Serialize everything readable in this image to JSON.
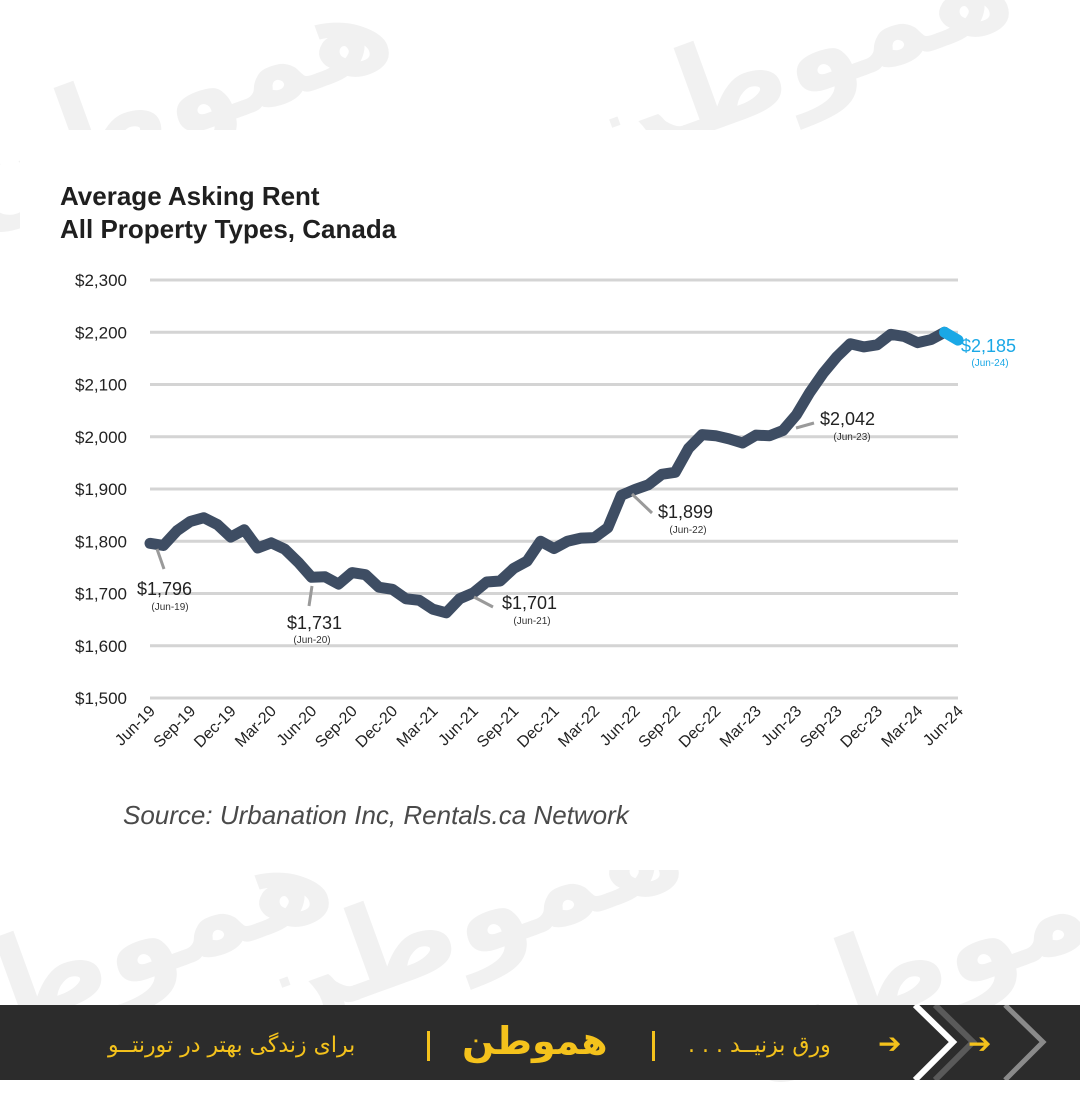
{
  "chart_data": {
    "type": "line",
    "title_lines": [
      "Average Asking Rent",
      "All Property Types, Canada"
    ],
    "source": "Source: Urbanation Inc, Rentals.ca Network",
    "ylim": [
      1500,
      2300
    ],
    "yticks": [
      "$2,300",
      "$2,200",
      "$2,100",
      "$2,000",
      "$1,900",
      "$1,800",
      "$1,700",
      "$1,600",
      "$1,500"
    ],
    "ytick_values": [
      2300,
      2200,
      2100,
      2000,
      1900,
      1800,
      1700,
      1600,
      1500
    ],
    "xtick_labels": [
      "Jun-19",
      "Sep-19",
      "Dec-19",
      "Mar-20",
      "Jun-20",
      "Sep-20",
      "Dec-20",
      "Mar-21",
      "Jun-21",
      "Sep-21",
      "Dec-21",
      "Mar-22",
      "Jun-22",
      "Sep-22",
      "Dec-22",
      "Mar-23",
      "Jun-23",
      "Sep-23",
      "Dec-23",
      "Mar-24",
      "Jun-24"
    ],
    "x": [
      "Jun-19",
      "Jul-19",
      "Aug-19",
      "Sep-19",
      "Oct-19",
      "Nov-19",
      "Dec-19",
      "Jan-20",
      "Feb-20",
      "Mar-20",
      "Apr-20",
      "May-20",
      "Jun-20",
      "Jul-20",
      "Aug-20",
      "Sep-20",
      "Oct-20",
      "Nov-20",
      "Dec-20",
      "Jan-21",
      "Feb-21",
      "Mar-21",
      "Apr-21",
      "May-21",
      "Jun-21",
      "Jul-21",
      "Aug-21",
      "Sep-21",
      "Oct-21",
      "Nov-21",
      "Dec-21",
      "Jan-22",
      "Feb-22",
      "Mar-22",
      "Apr-22",
      "May-22",
      "Jun-22",
      "Jul-22",
      "Aug-22",
      "Sep-22",
      "Oct-22",
      "Nov-22",
      "Dec-22",
      "Jan-23",
      "Feb-23",
      "Mar-23",
      "Apr-23",
      "May-23",
      "Jun-23",
      "Jul-23",
      "Aug-23",
      "Sep-23",
      "Oct-23",
      "Nov-23",
      "Dec-23",
      "Jan-24",
      "Feb-24",
      "Mar-24",
      "Apr-24",
      "May-24",
      "Jun-24"
    ],
    "values": [
      1796,
      1792,
      1820,
      1838,
      1845,
      1832,
      1808,
      1822,
      1787,
      1797,
      1785,
      1760,
      1731,
      1732,
      1718,
      1740,
      1736,
      1712,
      1708,
      1690,
      1687,
      1670,
      1663,
      1690,
      1701,
      1722,
      1724,
      1748,
      1762,
      1800,
      1786,
      1800,
      1806,
      1807,
      1826,
      1888,
      1899,
      1908,
      1928,
      1932,
      1978,
      2004,
      2002,
      1996,
      1988,
      2003,
      2002,
      2012,
      2042,
      2085,
      2122,
      2153,
      2178,
      2172,
      2176,
      2196,
      2192,
      2180,
      2186,
      2200,
      2185
    ],
    "line_color": "#3e4d63",
    "highlight_color": "#1aa8e6",
    "highlight_from_index": 59,
    "annotations": [
      {
        "value": "$1,796",
        "date": "(Jun-19)"
      },
      {
        "value": "$1,731",
        "date": "(Jun-20)"
      },
      {
        "value": "$1,701",
        "date": "(Jun-21)"
      },
      {
        "value": "$1,899",
        "date": "(Jun-22)"
      },
      {
        "value": "$2,042",
        "date": "(Jun-23)"
      },
      {
        "value": "$2,185",
        "date": "(Jun-24)"
      }
    ],
    "grid": true
  },
  "footer": {
    "tagline": "برای زندگی بهتر در تورنتــو",
    "brand": "هموطن",
    "swipe": "ورق بزنیــد . . .",
    "accent_color": "#f4c21c"
  },
  "watermark": "هموطن"
}
